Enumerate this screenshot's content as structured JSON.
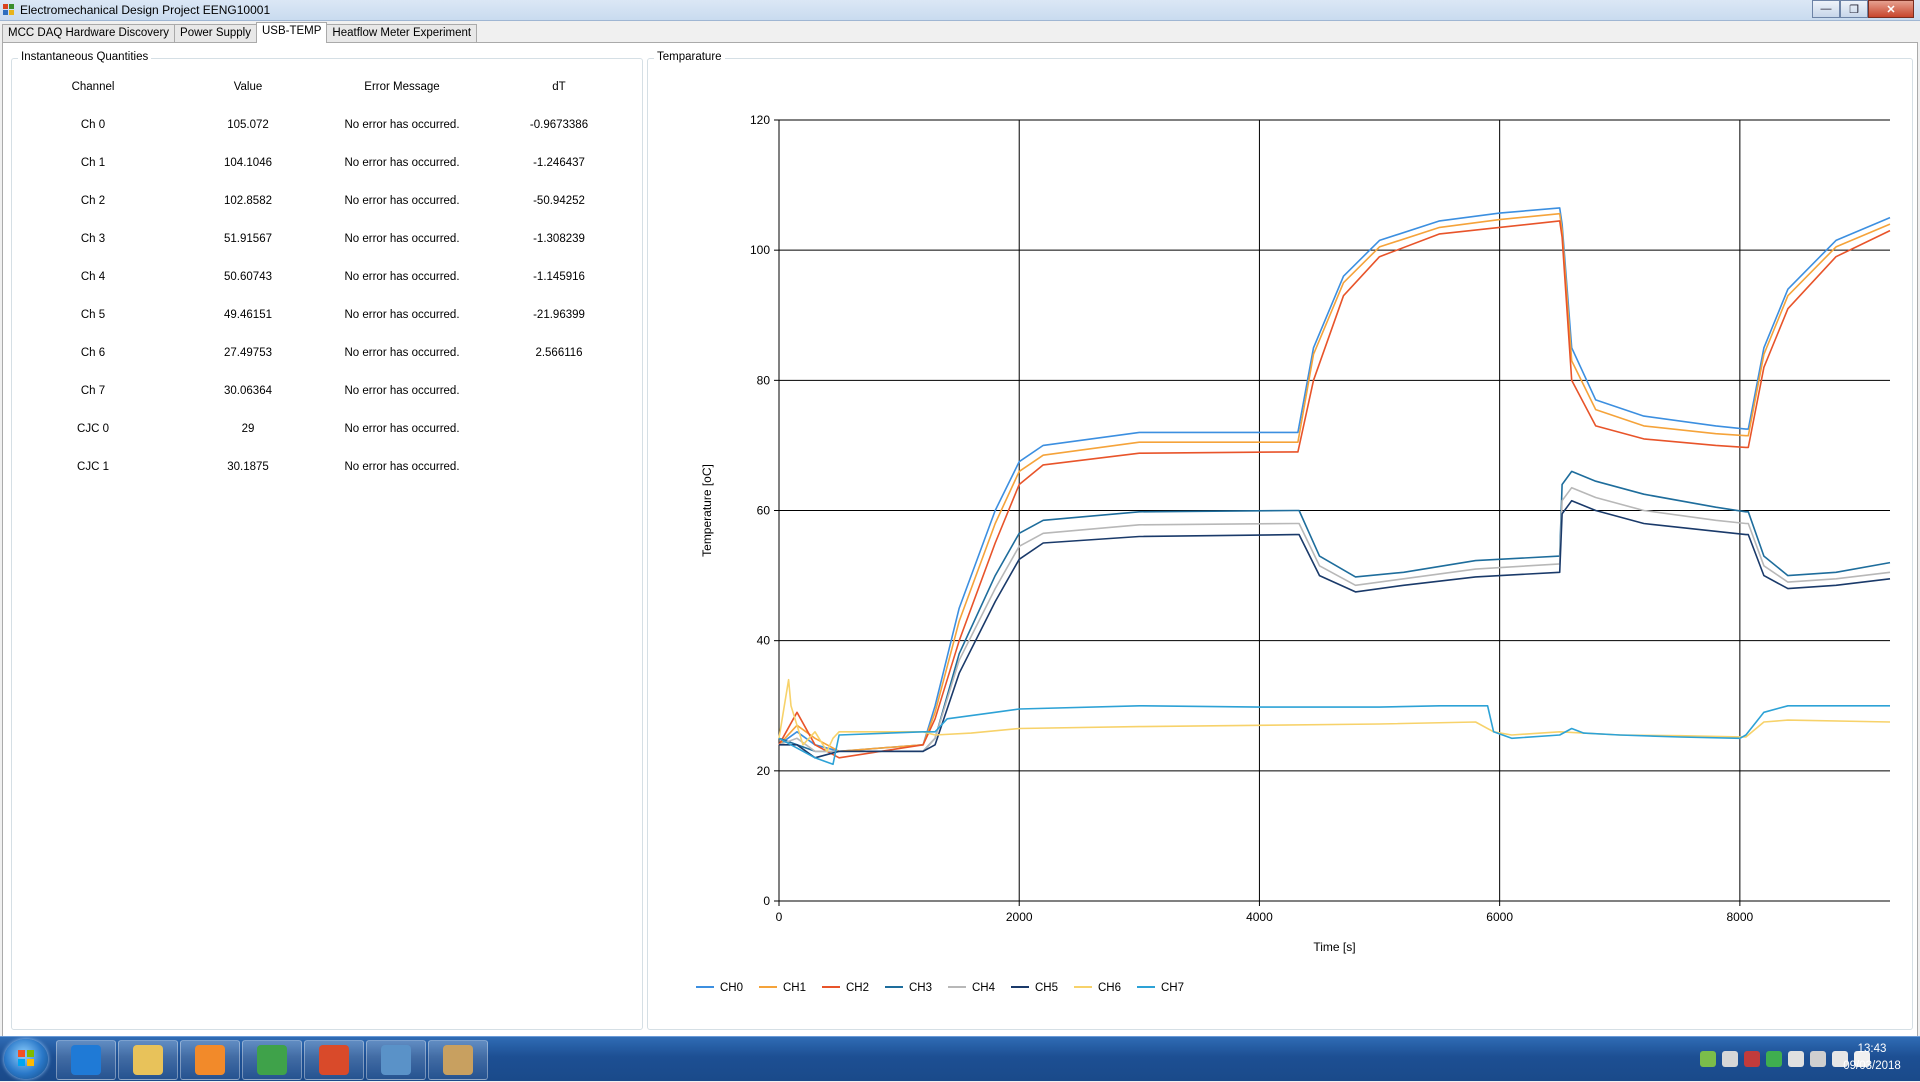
{
  "window": {
    "title": "Electromechanical Design Project EENG10001"
  },
  "tabs": [
    {
      "label": "MCC DAQ Hardware Discovery"
    },
    {
      "label": "Power Supply"
    },
    {
      "label": "USB-TEMP"
    },
    {
      "label": "Heatflow Meter Experiment"
    }
  ],
  "instantaneous": {
    "title": "Instantaneous Quantities",
    "headers": [
      "Channel",
      "Value",
      "Error Message",
      "dT"
    ],
    "rows": [
      {
        "channel": "Ch 0",
        "value": "105.072",
        "error": "No error has occurred.",
        "dt": "-0.9673386"
      },
      {
        "channel": "Ch 1",
        "value": "104.1046",
        "error": "No error has occurred.",
        "dt": "-1.246437"
      },
      {
        "channel": "Ch 2",
        "value": "102.8582",
        "error": "No error has occurred.",
        "dt": "-50.94252"
      },
      {
        "channel": "Ch 3",
        "value": "51.91567",
        "error": "No error has occurred.",
        "dt": "-1.308239"
      },
      {
        "channel": "Ch 4",
        "value": "50.60743",
        "error": "No error has occurred.",
        "dt": "-1.145916"
      },
      {
        "channel": "Ch 5",
        "value": "49.46151",
        "error": "No error has occurred.",
        "dt": "-21.96399"
      },
      {
        "channel": "Ch 6",
        "value": "27.49753",
        "error": "No error has occurred.",
        "dt": "2.566116"
      },
      {
        "channel": "Ch 7",
        "value": "30.06364",
        "error": "No error has occurred.",
        "dt": ""
      },
      {
        "channel": "CJC 0",
        "value": "29",
        "error": "No error has occurred.",
        "dt": ""
      },
      {
        "channel": "CJC 1",
        "value": "30.1875",
        "error": "No error has occurred.",
        "dt": ""
      }
    ]
  },
  "temperature_group": {
    "title": "Temparature"
  },
  "chart_data": {
    "type": "line",
    "title": "",
    "xlabel": "Time [s]",
    "ylabel": "Temperature [oC]",
    "xlim": [
      0,
      9250
    ],
    "ylim": [
      0,
      120
    ],
    "xticks": [
      0,
      2000,
      4000,
      6000,
      8000
    ],
    "yticks": [
      0,
      20,
      40,
      60,
      80,
      100,
      120
    ],
    "grid": true,
    "legend": "bottom",
    "series": [
      {
        "name": "CH0",
        "color": "#3c8fe0",
        "x": [
          0,
          150,
          300,
          500,
          1200,
          1300,
          1500,
          1800,
          2000,
          2200,
          3000,
          4300,
          4320,
          4450,
          4700,
          5000,
          5500,
          6000,
          6500,
          6520,
          6600,
          6800,
          7200,
          7800,
          8050,
          8070,
          8200,
          8400,
          8800,
          9250
        ],
        "y": [
          24,
          26,
          24,
          23,
          24,
          30,
          45,
          60,
          67.5,
          70,
          72,
          72,
          72,
          85,
          96,
          101.5,
          104.5,
          105.7,
          106.5,
          104,
          85,
          77,
          74.5,
          73,
          72.5,
          72.5,
          85,
          94,
          101.5,
          105
        ]
      },
      {
        "name": "CH1",
        "color": "#f5a33a",
        "x": [
          0,
          150,
          300,
          500,
          1200,
          1300,
          1500,
          1800,
          2000,
          2200,
          3000,
          4300,
          4320,
          4450,
          4700,
          5000,
          5500,
          6000,
          6500,
          6520,
          6600,
          6800,
          7200,
          7800,
          8050,
          8070,
          8200,
          8400,
          8800,
          9250
        ],
        "y": [
          24,
          27,
          25,
          23,
          24,
          29,
          43,
          58,
          66,
          68.5,
          70.5,
          70.5,
          70.5,
          84,
          95,
          100.5,
          103.5,
          104.7,
          105.6,
          103,
          83,
          75.5,
          73,
          71.8,
          71.5,
          71.5,
          84,
          93,
          100.5,
          104
        ]
      },
      {
        "name": "CH2",
        "color": "#e8542a",
        "x": [
          0,
          150,
          300,
          500,
          1200,
          1300,
          1500,
          1800,
          2000,
          2200,
          3000,
          4300,
          4320,
          4450,
          4700,
          5000,
          5500,
          6000,
          6500,
          6520,
          6600,
          6800,
          7200,
          7800,
          8050,
          8070,
          8200,
          8400,
          8800,
          9250
        ],
        "y": [
          24,
          29,
          24,
          22,
          24,
          28,
          40,
          55,
          64,
          67,
          68.8,
          69,
          69,
          80,
          93,
          99,
          102.5,
          103.5,
          104.5,
          102,
          80,
          73,
          71,
          70,
          69.7,
          69.7,
          82,
          91,
          99,
          103
        ]
      },
      {
        "name": "CH3",
        "color": "#1e6d9c",
        "x": [
          0,
          150,
          300,
          500,
          1200,
          1300,
          1500,
          1800,
          2000,
          2200,
          3000,
          4300,
          4330,
          4500,
          4800,
          5200,
          5800,
          6500,
          6520,
          6600,
          6800,
          7200,
          7800,
          8050,
          8070,
          8200,
          8400,
          8800,
          9250
        ],
        "y": [
          25,
          24,
          23,
          23,
          23,
          25,
          38,
          50,
          56.5,
          58.5,
          59.8,
          60,
          60,
          53,
          49.8,
          50.5,
          52.3,
          53,
          64,
          66,
          64.5,
          62.5,
          60.5,
          59.8,
          59.8,
          53,
          50,
          50.5,
          52
        ]
      },
      {
        "name": "CH4",
        "color": "#b8b8b8",
        "x": [
          0,
          150,
          300,
          500,
          1200,
          1300,
          1500,
          1800,
          2000,
          2200,
          3000,
          4300,
          4330,
          4500,
          4800,
          5200,
          5800,
          6500,
          6520,
          6600,
          6800,
          7200,
          7800,
          8050,
          8070,
          8200,
          8400,
          8800,
          9250
        ],
        "y": [
          24,
          25,
          23,
          23,
          23,
          25,
          37,
          48,
          54.5,
          56.5,
          57.8,
          58,
          58,
          51.5,
          48.5,
          49.5,
          51,
          51.8,
          61.5,
          63.5,
          62,
          60,
          58.5,
          58,
          58,
          51.5,
          49,
          49.5,
          50.5
        ]
      },
      {
        "name": "CH5",
        "color": "#1a3a6a",
        "x": [
          0,
          150,
          300,
          500,
          1200,
          1300,
          1500,
          1800,
          2000,
          2200,
          3000,
          4300,
          4330,
          4500,
          4800,
          5200,
          5800,
          6500,
          6520,
          6600,
          6800,
          7200,
          7800,
          8050,
          8070,
          8200,
          8400,
          8800,
          9250
        ],
        "y": [
          24,
          24,
          22,
          23,
          23,
          24,
          35,
          46,
          52.5,
          55,
          56,
          56.3,
          56.3,
          50,
          47.5,
          48.5,
          49.8,
          50.5,
          59.5,
          61.5,
          60,
          58,
          56.8,
          56.3,
          56.3,
          50,
          48,
          48.5,
          49.5
        ]
      },
      {
        "name": "CH6",
        "color": "#f7d26a",
        "x": [
          0,
          80,
          100,
          150,
          200,
          300,
          400,
          450,
          500,
          1200,
          1300,
          1600,
          2000,
          3000,
          4000,
          5000,
          5800,
          5950,
          6100,
          6500,
          7000,
          7500,
          8050,
          8200,
          8400,
          9250
        ],
        "y": [
          25,
          34,
          30,
          27,
          24,
          26,
          23,
          25,
          26,
          26,
          25.5,
          25.8,
          26.5,
          26.8,
          27,
          27.2,
          27.5,
          26,
          25.5,
          26,
          25.5,
          25.4,
          25.2,
          27.5,
          27.8,
          27.5
        ]
      },
      {
        "name": "CH7",
        "color": "#2da2d6",
        "x": [
          0,
          100,
          200,
          300,
          450,
          500,
          1200,
          1300,
          1400,
          1800,
          2000,
          3000,
          4000,
          5000,
          5500,
          5900,
          5950,
          6100,
          6500,
          6600,
          6700,
          7000,
          7500,
          8000,
          8050,
          8200,
          8400,
          9250
        ],
        "y": [
          25,
          24,
          23,
          22,
          21,
          25.5,
          26,
          26,
          28,
          29,
          29.5,
          30,
          29.8,
          29.8,
          30,
          30,
          26,
          25,
          25.5,
          26.5,
          25.8,
          25.5,
          25.2,
          25,
          25.5,
          29,
          30,
          30
        ]
      }
    ]
  },
  "taskbar": {
    "apps": [
      {
        "icon": "internet-explorer-icon",
        "color": "#1f7ad6"
      },
      {
        "icon": "folder-icon",
        "color": "#e8c25a"
      },
      {
        "icon": "media-player-icon",
        "color": "#f28a2a"
      },
      {
        "icon": "chrome-icon",
        "color": "#3fa24a"
      },
      {
        "icon": "app-icon",
        "color": "#d94a2a"
      },
      {
        "icon": "picture-viewer-icon",
        "color": "#5a92c8"
      },
      {
        "icon": "paint-icon",
        "color": "#c8a060"
      }
    ],
    "clock_time": "13:43",
    "clock_date": "09/03/2018"
  }
}
